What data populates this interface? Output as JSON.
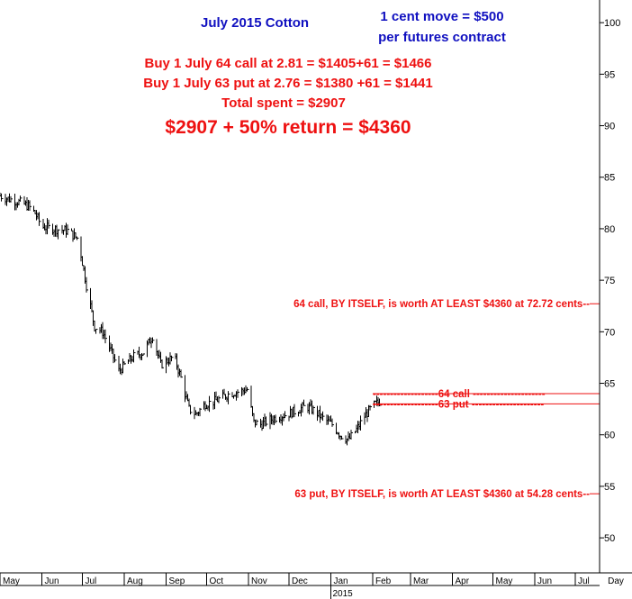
{
  "chart_data": {
    "type": "bar",
    "subtype": "ohlc",
    "title": "July 2015 Cotton",
    "xlabel": "",
    "ylabel": "",
    "x_axis_unit_label": "Day",
    "year_label": "2015",
    "ylim": [
      46.6,
      102.2
    ],
    "y_ticks": [
      50,
      55,
      60,
      65,
      70,
      75,
      80,
      85,
      90,
      95,
      100
    ],
    "y_tick_labels": [
      "50",
      "55",
      "60",
      "65",
      "70",
      "75",
      "80",
      "85",
      "90",
      "95",
      "100"
    ],
    "x_tick_labels": [
      "May",
      "Jun",
      "Jul",
      "Aug",
      "Sep",
      "Oct",
      "Nov",
      "Dec",
      "Jan",
      "Feb",
      "Mar",
      "Apr",
      "May",
      "Jun",
      "Jul"
    ],
    "x_tick_dates": [
      "2014-05-01",
      "2014-06-01",
      "2014-07-01",
      "2014-08-01",
      "2014-09-01",
      "2014-10-01",
      "2014-11-01",
      "2014-12-01",
      "2015-01-01",
      "2015-02-01",
      "2015-03-01",
      "2015-04-01",
      "2015-05-01",
      "2015-06-01",
      "2015-07-01"
    ],
    "price_path": {
      "dates": [
        "2014-05-01",
        "2014-05-05",
        "2014-05-15",
        "2014-05-22",
        "2014-05-27",
        "2014-06-01",
        "2014-06-10",
        "2014-06-20",
        "2014-06-28",
        "2014-07-04",
        "2014-07-10",
        "2014-07-16",
        "2014-07-22",
        "2014-07-28",
        "2014-08-03",
        "2014-08-08",
        "2014-08-15",
        "2014-08-22",
        "2014-08-28",
        "2014-09-02",
        "2014-09-07",
        "2014-09-12",
        "2014-09-18",
        "2014-09-23",
        "2014-09-30",
        "2014-10-06",
        "2014-10-12",
        "2014-10-18",
        "2014-10-25",
        "2014-10-31",
        "2014-11-05",
        "2014-11-10",
        "2014-11-16",
        "2014-11-23",
        "2014-11-30",
        "2014-12-07",
        "2014-12-14",
        "2014-12-21",
        "2014-12-27",
        "2015-01-02",
        "2015-01-08",
        "2015-01-14",
        "2015-01-20",
        "2015-01-26",
        "2015-02-01",
        "2015-02-08"
      ],
      "close": [
        83.2,
        83.0,
        82.6,
        82.2,
        81.5,
        80.2,
        80.0,
        79.8,
        79.0,
        74.5,
        70.5,
        70.0,
        68.2,
        66.2,
        67.0,
        67.6,
        68.0,
        69.6,
        66.8,
        67.2,
        67.6,
        65.5,
        62.5,
        62.0,
        63.0,
        63.2,
        63.6,
        64.0,
        64.2,
        64.4,
        61.2,
        61.0,
        61.4,
        61.8,
        62.0,
        62.4,
        62.8,
        62.2,
        61.5,
        61.0,
        60.0,
        59.5,
        60.5,
        61.8,
        62.8,
        63.4
      ]
    },
    "daily_range_approx": 0.9,
    "series": [
      {
        "name": "64 call",
        "value": 64.0
      },
      {
        "name": "63 put",
        "value": 63.0
      },
      {
        "value": 72.72
      },
      {
        "value": 54.28
      }
    ],
    "level_start_date": "2015-02-01",
    "colors": {
      "price_bars": "#000000",
      "title": "#1010c0",
      "annotations": "#ee1111",
      "level_lines": "#ee1111",
      "axis": "#000000"
    },
    "grid": false,
    "axis_position": "right"
  },
  "annotations": {
    "title": "July 2015 Cotton",
    "move_line1": "1 cent move = $500",
    "move_line2": "per futures contract",
    "buy_call": "Buy 1 July 64 call at 2.81 = $1405+61 = $1466",
    "buy_put": "Buy 1 July 63 put at 2.76 = $1380 +61 = $1441",
    "total": "Total spent = $2907",
    "return": "$2907 + 50% return = $4360",
    "call_worth": "64 call, BY ITSELF, is worth AT LEAST $4360 at 72.72 cents--",
    "put_worth": "63 put, BY ITSELF, is worth AT LEAST $4360 at 54.28 cents--",
    "label_64_call": "-------------------64 call ---------------------",
    "label_63_put": "-------------------63 put ---------------------"
  }
}
